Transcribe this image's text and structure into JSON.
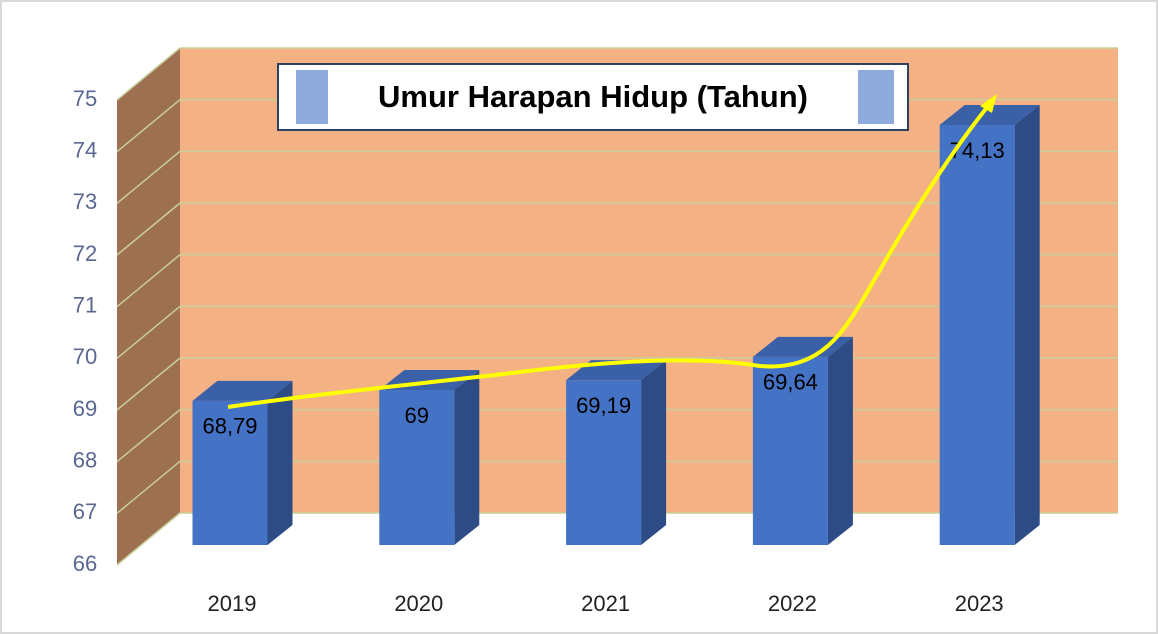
{
  "chart_data": {
    "type": "bar3d",
    "title": "Umur Harapan Hidup (Tahun)",
    "categories": [
      "2019",
      "2020",
      "2021",
      "2022",
      "2023"
    ],
    "values": [
      68.79,
      69,
      69.19,
      69.64,
      74.13
    ],
    "value_labels": [
      "68,79",
      "69",
      "69,19",
      "69,64",
      "74,13"
    ],
    "color": "#4472c4",
    "ylim": [
      66,
      75
    ],
    "yticks": [
      66,
      67,
      68,
      69,
      70,
      71,
      72,
      73,
      74,
      75
    ],
    "grid": true
  }
}
